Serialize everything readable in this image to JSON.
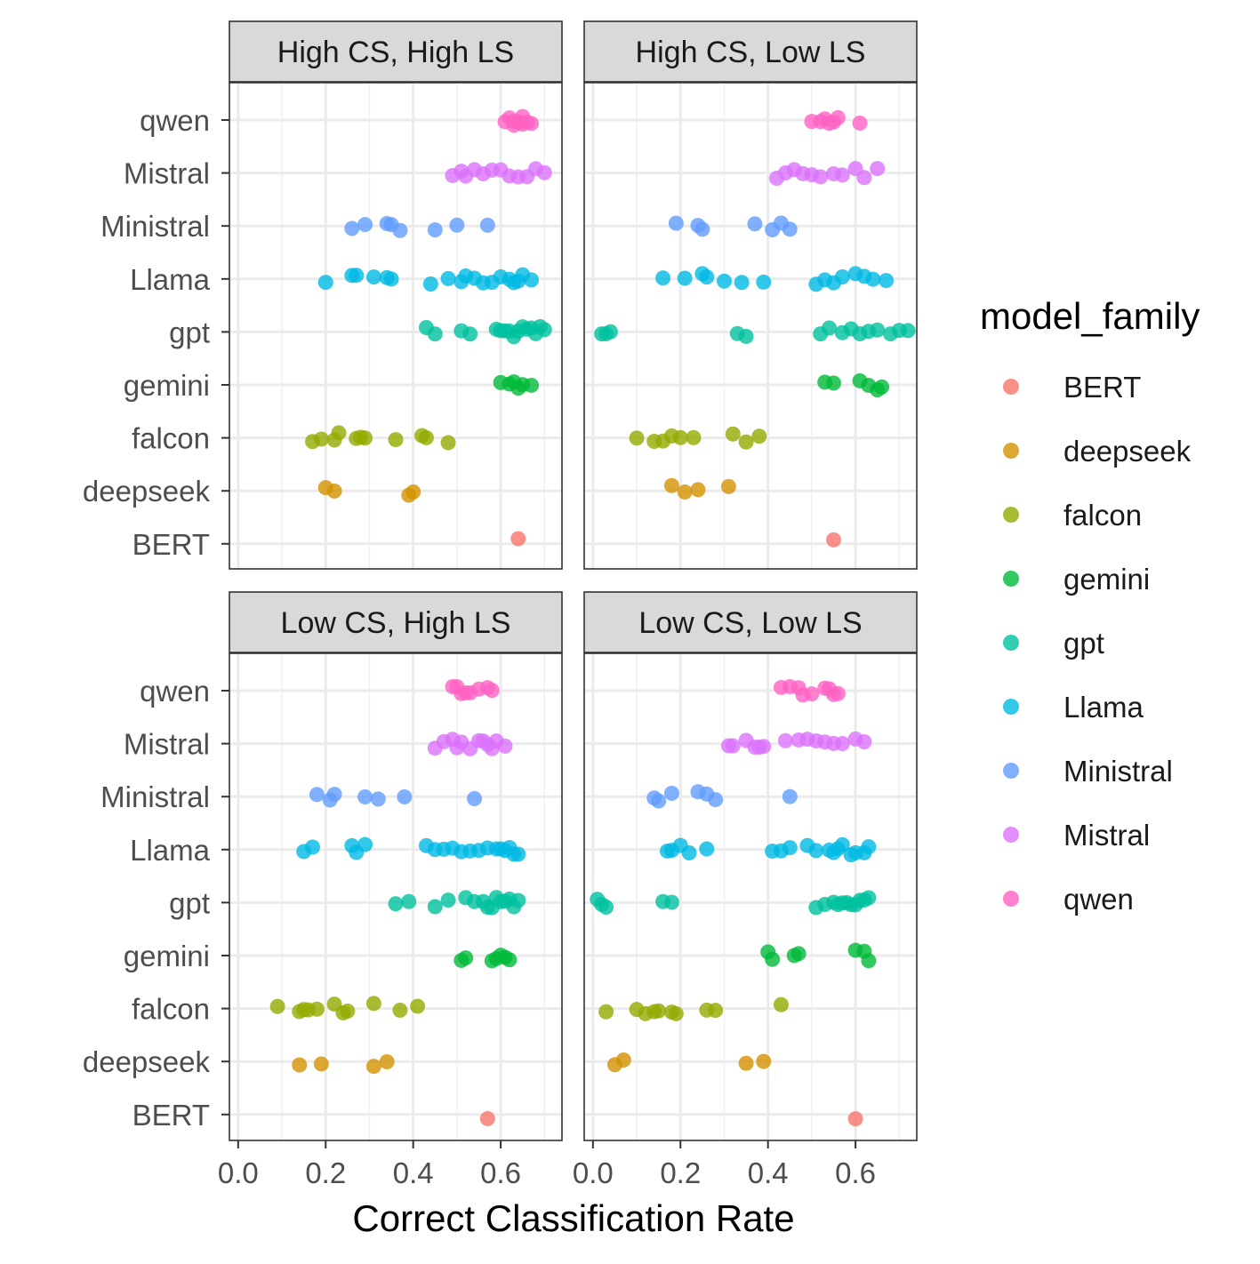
{
  "chart_data": {
    "type": "scatter",
    "xlabel": "Correct Classification Rate",
    "ylabel": "",
    "xlim": [
      -0.02,
      0.74
    ],
    "xticks": [
      0.0,
      0.2,
      0.4,
      0.6
    ],
    "xtick_labels": [
      "0.0",
      "0.2",
      "0.4",
      "0.6"
    ],
    "categories": [
      "qwen",
      "Mistral",
      "Ministral",
      "Llama",
      "gpt",
      "gemini",
      "falcon",
      "deepseek",
      "BERT"
    ],
    "grid": true,
    "legend": {
      "title": "model_family",
      "position": "right",
      "entries": [
        "BERT",
        "deepseek",
        "falcon",
        "gemini",
        "gpt",
        "Llama",
        "Ministral",
        "Mistral",
        "qwen"
      ]
    },
    "colors": {
      "BERT": "#F8766D",
      "deepseek": "#D39200",
      "falcon": "#93AA00",
      "gemini": "#00BA38",
      "gpt": "#00C19F",
      "Llama": "#00B9E3",
      "Ministral": "#619CFF",
      "Mistral": "#DB72FB",
      "qwen": "#FF61C3"
    },
    "panels": [
      {
        "title": "High CS, High LS",
        "points": {
          "qwen": [
            0.61,
            0.62,
            0.63,
            0.63,
            0.64,
            0.64,
            0.65,
            0.65,
            0.66,
            0.67
          ],
          "Mistral": [
            0.49,
            0.51,
            0.52,
            0.54,
            0.56,
            0.58,
            0.6,
            0.62,
            0.64,
            0.66,
            0.68,
            0.7
          ],
          "Ministral": [
            0.26,
            0.29,
            0.34,
            0.35,
            0.37,
            0.45,
            0.5,
            0.57
          ],
          "Llama": [
            0.2,
            0.26,
            0.27,
            0.31,
            0.34,
            0.35,
            0.44,
            0.48,
            0.51,
            0.52,
            0.54,
            0.56,
            0.58,
            0.6,
            0.62,
            0.63,
            0.64,
            0.65,
            0.67
          ],
          "gpt": [
            0.43,
            0.45,
            0.51,
            0.53,
            0.59,
            0.6,
            0.61,
            0.62,
            0.63,
            0.64,
            0.65,
            0.66,
            0.67,
            0.68,
            0.69,
            0.7
          ],
          "gemini": [
            0.6,
            0.62,
            0.63,
            0.64,
            0.65,
            0.67
          ],
          "falcon": [
            0.17,
            0.19,
            0.22,
            0.23,
            0.27,
            0.28,
            0.29,
            0.36,
            0.42,
            0.43,
            0.48
          ],
          "deepseek": [
            0.2,
            0.22,
            0.39,
            0.4
          ],
          "BERT": [
            0.64
          ]
        }
      },
      {
        "title": "High CS, Low LS",
        "points": {
          "qwen": [
            0.5,
            0.52,
            0.53,
            0.54,
            0.55,
            0.56,
            0.61
          ],
          "Mistral": [
            0.42,
            0.44,
            0.46,
            0.48,
            0.5,
            0.52,
            0.55,
            0.57,
            0.6,
            0.62,
            0.65
          ],
          "Ministral": [
            0.19,
            0.24,
            0.25,
            0.37,
            0.41,
            0.43,
            0.45
          ],
          "Llama": [
            0.16,
            0.21,
            0.25,
            0.26,
            0.3,
            0.34,
            0.39,
            0.51,
            0.53,
            0.55,
            0.57,
            0.6,
            0.62,
            0.64,
            0.67
          ],
          "gpt": [
            0.02,
            0.03,
            0.04,
            0.33,
            0.35,
            0.52,
            0.54,
            0.57,
            0.59,
            0.61,
            0.63,
            0.65,
            0.68,
            0.7,
            0.72
          ],
          "gemini": [
            0.53,
            0.55,
            0.61,
            0.63,
            0.65,
            0.66
          ],
          "falcon": [
            0.1,
            0.14,
            0.16,
            0.18,
            0.2,
            0.23,
            0.32,
            0.35,
            0.38
          ],
          "deepseek": [
            0.18,
            0.21,
            0.24,
            0.31
          ],
          "BERT": [
            0.55
          ]
        }
      },
      {
        "title": "Low CS, High LS",
        "points": {
          "qwen": [
            0.49,
            0.5,
            0.51,
            0.52,
            0.53,
            0.55,
            0.57,
            0.58
          ],
          "Mistral": [
            0.45,
            0.47,
            0.49,
            0.5,
            0.51,
            0.53,
            0.55,
            0.56,
            0.57,
            0.58,
            0.59,
            0.61
          ],
          "Ministral": [
            0.18,
            0.21,
            0.22,
            0.29,
            0.32,
            0.38,
            0.54
          ],
          "Llama": [
            0.15,
            0.17,
            0.26,
            0.27,
            0.29,
            0.43,
            0.45,
            0.47,
            0.49,
            0.51,
            0.53,
            0.55,
            0.57,
            0.59,
            0.6,
            0.61,
            0.62,
            0.63,
            0.64
          ],
          "gpt": [
            0.36,
            0.39,
            0.45,
            0.48,
            0.52,
            0.54,
            0.56,
            0.57,
            0.58,
            0.59,
            0.6,
            0.61,
            0.62,
            0.63,
            0.64
          ],
          "gemini": [
            0.51,
            0.52,
            0.58,
            0.59,
            0.6,
            0.61,
            0.62
          ],
          "falcon": [
            0.09,
            0.14,
            0.15,
            0.16,
            0.18,
            0.22,
            0.24,
            0.25,
            0.31,
            0.37,
            0.41
          ],
          "deepseek": [
            0.14,
            0.19,
            0.31,
            0.34
          ],
          "BERT": [
            0.57
          ]
        }
      },
      {
        "title": "Low CS, Low LS",
        "points": {
          "qwen": [
            0.43,
            0.45,
            0.47,
            0.48,
            0.5,
            0.53,
            0.54,
            0.55,
            0.56
          ],
          "Mistral": [
            0.31,
            0.32,
            0.35,
            0.37,
            0.38,
            0.39,
            0.44,
            0.47,
            0.49,
            0.51,
            0.53,
            0.55,
            0.57,
            0.6,
            0.62
          ],
          "Ministral": [
            0.14,
            0.15,
            0.18,
            0.24,
            0.26,
            0.28,
            0.45
          ],
          "Llama": [
            0.17,
            0.18,
            0.2,
            0.22,
            0.26,
            0.41,
            0.43,
            0.45,
            0.49,
            0.51,
            0.54,
            0.55,
            0.56,
            0.57,
            0.59,
            0.6,
            0.62,
            0.63
          ],
          "gpt": [
            0.01,
            0.02,
            0.03,
            0.16,
            0.18,
            0.51,
            0.53,
            0.55,
            0.56,
            0.57,
            0.58,
            0.59,
            0.6,
            0.61,
            0.62,
            0.63
          ],
          "gemini": [
            0.4,
            0.41,
            0.46,
            0.47,
            0.6,
            0.62,
            0.63
          ],
          "falcon": [
            0.03,
            0.1,
            0.12,
            0.14,
            0.15,
            0.18,
            0.19,
            0.26,
            0.28,
            0.43
          ],
          "deepseek": [
            0.05,
            0.07,
            0.35,
            0.39
          ],
          "BERT": [
            0.6
          ]
        }
      }
    ]
  }
}
